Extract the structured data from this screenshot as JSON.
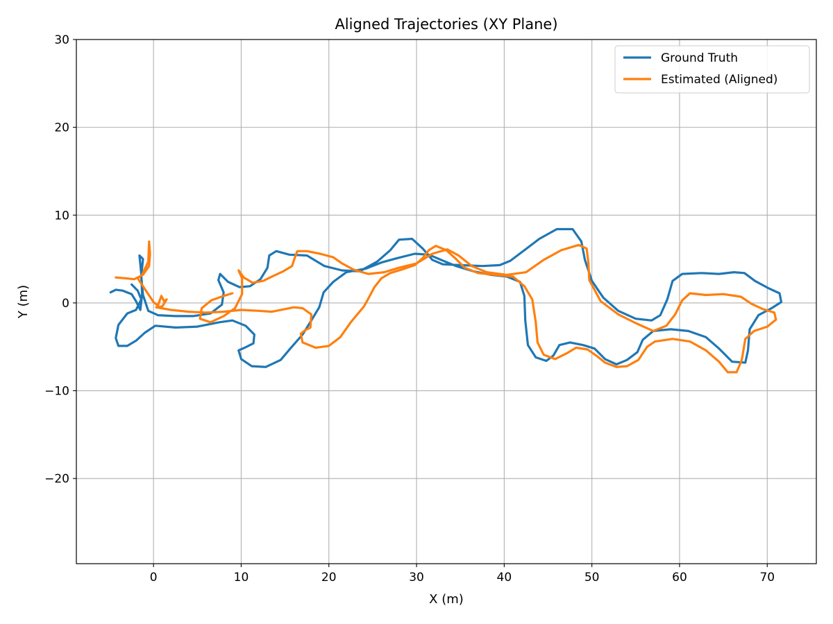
{
  "chart_data": {
    "type": "line",
    "title": "Aligned Trajectories (XY Plane)",
    "xlabel": "X (m)",
    "ylabel": "Y (m)",
    "xlim": [
      -8.8,
      75.6
    ],
    "ylim": [
      -29.7,
      30
    ],
    "xticks": [
      0,
      10,
      20,
      30,
      40,
      50,
      60,
      70
    ],
    "yticks": [
      -20,
      -10,
      0,
      10,
      20,
      30
    ],
    "xtick_labels": [
      "0",
      "10",
      "20",
      "30",
      "40",
      "50",
      "60",
      "70"
    ],
    "ytick_labels": [
      "−20",
      "−10",
      "0",
      "10",
      "20",
      "30"
    ],
    "grid": true,
    "legend_position": "top-right",
    "series": [
      {
        "name": "Ground Truth",
        "color": "#1f77b4",
        "points": [
          [
            -4.9,
            1.2
          ],
          [
            -4.3,
            1.5
          ],
          [
            -3.5,
            1.4
          ],
          [
            -2.5,
            1.0
          ],
          [
            -2.0,
            0.2
          ],
          [
            -1.5,
            -0.8
          ],
          [
            -1.3,
            1.0
          ],
          [
            -1.4,
            3.3
          ],
          [
            -1.6,
            5.4
          ],
          [
            -1.2,
            5.0
          ],
          [
            -1.4,
            3.0
          ],
          [
            -1.2,
            0.9
          ],
          [
            -0.6,
            -0.9
          ],
          [
            0.5,
            -1.4
          ],
          [
            2.5,
            -1.5
          ],
          [
            4.5,
            -1.5
          ],
          [
            6.5,
            -1.2
          ],
          [
            7.8,
            -0.2
          ],
          [
            8.0,
            1.2
          ],
          [
            7.4,
            2.6
          ],
          [
            7.6,
            3.3
          ],
          [
            8.5,
            2.4
          ],
          [
            9.8,
            1.8
          ],
          [
            11.0,
            1.9
          ],
          [
            12.2,
            2.7
          ],
          [
            13.0,
            4.0
          ],
          [
            13.2,
            5.4
          ],
          [
            14.0,
            5.9
          ],
          [
            15.5,
            5.5
          ],
          [
            17.5,
            5.4
          ],
          [
            18.5,
            4.8
          ],
          [
            19.5,
            4.2
          ],
          [
            21.5,
            3.7
          ],
          [
            23.5,
            3.6
          ],
          [
            25.5,
            4.7
          ],
          [
            27.0,
            6.0
          ],
          [
            28.0,
            7.2
          ],
          [
            29.5,
            7.3
          ],
          [
            30.7,
            6.2
          ],
          [
            31.8,
            4.9
          ],
          [
            33.0,
            4.4
          ],
          [
            35.0,
            4.3
          ],
          [
            37.5,
            4.2
          ],
          [
            39.5,
            4.3
          ],
          [
            40.7,
            4.8
          ],
          [
            42.3,
            6.0
          ],
          [
            44.0,
            7.3
          ],
          [
            46.0,
            8.4
          ],
          [
            47.8,
            8.4
          ],
          [
            48.8,
            7.0
          ],
          [
            49.2,
            4.9
          ],
          [
            50.0,
            2.5
          ],
          [
            51.3,
            0.6
          ],
          [
            53.0,
            -0.9
          ],
          [
            55.0,
            -1.8
          ],
          [
            56.8,
            -2.0
          ],
          [
            57.8,
            -1.4
          ],
          [
            58.6,
            0.4
          ],
          [
            59.2,
            2.5
          ],
          [
            60.3,
            3.3
          ],
          [
            62.5,
            3.4
          ],
          [
            64.5,
            3.3
          ],
          [
            66.2,
            3.5
          ],
          [
            67.4,
            3.4
          ],
          [
            68.6,
            2.5
          ],
          [
            70.1,
            1.7
          ],
          [
            71.4,
            1.1
          ],
          [
            71.6,
            0.1
          ],
          [
            70.5,
            -0.6
          ],
          [
            69.0,
            -1.4
          ],
          [
            68.0,
            -3.0
          ],
          [
            67.8,
            -5.4
          ],
          [
            67.5,
            -6.8
          ],
          [
            66.0,
            -6.7
          ],
          [
            64.5,
            -5.2
          ],
          [
            63.0,
            -3.9
          ],
          [
            61.0,
            -3.2
          ],
          [
            59.0,
            -3.0
          ],
          [
            57.0,
            -3.2
          ],
          [
            55.8,
            -4.2
          ],
          [
            55.2,
            -5.6
          ],
          [
            54.0,
            -6.5
          ],
          [
            52.8,
            -7.0
          ],
          [
            51.5,
            -6.4
          ],
          [
            50.3,
            -5.2
          ],
          [
            49.0,
            -4.8
          ],
          [
            47.5,
            -4.5
          ],
          [
            46.3,
            -4.8
          ],
          [
            45.6,
            -6.0
          ],
          [
            44.8,
            -6.6
          ],
          [
            43.6,
            -6.2
          ],
          [
            42.7,
            -4.8
          ],
          [
            42.4,
            -2.0
          ],
          [
            42.3,
            0.8
          ],
          [
            41.8,
            2.4
          ],
          [
            40.3,
            3.0
          ],
          [
            38.5,
            3.2
          ],
          [
            36.5,
            3.6
          ],
          [
            34.5,
            4.2
          ],
          [
            32.8,
            4.9
          ],
          [
            31.4,
            5.5
          ],
          [
            29.8,
            5.6
          ],
          [
            27.8,
            5.1
          ],
          [
            26.0,
            4.6
          ],
          [
            24.2,
            3.9
          ],
          [
            22.0,
            3.5
          ],
          [
            20.5,
            2.4
          ],
          [
            19.4,
            1.2
          ],
          [
            18.9,
            -0.5
          ],
          [
            18.0,
            -2.0
          ],
          [
            17.0,
            -3.6
          ],
          [
            15.6,
            -5.2
          ],
          [
            14.5,
            -6.5
          ],
          [
            12.8,
            -7.3
          ],
          [
            11.2,
            -7.2
          ],
          [
            10.0,
            -6.4
          ],
          [
            9.7,
            -5.4
          ],
          [
            10.4,
            -5.1
          ],
          [
            11.4,
            -4.6
          ],
          [
            11.5,
            -3.6
          ],
          [
            10.5,
            -2.6
          ],
          [
            9.0,
            -2.0
          ],
          [
            7.5,
            -2.2
          ],
          [
            5.0,
            -2.7
          ],
          [
            2.5,
            -2.8
          ],
          [
            0.2,
            -2.6
          ],
          [
            -1.0,
            -3.4
          ],
          [
            -2.0,
            -4.3
          ],
          [
            -3.0,
            -4.9
          ],
          [
            -4.0,
            -4.9
          ],
          [
            -4.3,
            -4.0
          ],
          [
            -4.0,
            -2.5
          ],
          [
            -3.0,
            -1.2
          ],
          [
            -2.0,
            -0.8
          ],
          [
            -1.4,
            0.4
          ],
          [
            -1.8,
            1.4
          ],
          [
            -2.5,
            2.1
          ]
        ]
      },
      {
        "name": "Estimated (Aligned)",
        "color": "#ff7f0e",
        "points": [
          [
            -4.3,
            2.9
          ],
          [
            -3.2,
            2.8
          ],
          [
            -2.2,
            2.7
          ],
          [
            -1.2,
            3.2
          ],
          [
            -0.5,
            4.2
          ],
          [
            -0.4,
            5.6
          ],
          [
            -0.5,
            7.0
          ],
          [
            -0.6,
            4.7
          ],
          [
            -1.3,
            3.2
          ],
          [
            -1.8,
            2.8
          ],
          [
            -1.0,
            1.6
          ],
          [
            0.0,
            0.1
          ],
          [
            0.5,
            -0.3
          ],
          [
            0.9,
            0.8
          ],
          [
            1.2,
            0.2
          ],
          [
            1.5,
            0.4
          ],
          [
            1.0,
            -0.4
          ],
          [
            0.3,
            -0.5
          ],
          [
            2.0,
            -0.8
          ],
          [
            4.0,
            -1.0
          ],
          [
            6.0,
            -1.1
          ],
          [
            8.0,
            -1.0
          ],
          [
            10.0,
            -0.8
          ],
          [
            12.0,
            -0.9
          ],
          [
            13.5,
            -1.0
          ],
          [
            15.0,
            -0.7
          ],
          [
            16.0,
            -0.5
          ],
          [
            17.0,
            -0.6
          ],
          [
            18.0,
            -1.3
          ],
          [
            17.9,
            -2.8
          ],
          [
            17.3,
            -3.1
          ],
          [
            16.8,
            -3.5
          ],
          [
            17.0,
            -4.5
          ],
          [
            18.5,
            -5.1
          ],
          [
            20.0,
            -4.9
          ],
          [
            21.3,
            -3.9
          ],
          [
            22.5,
            -2.2
          ],
          [
            24.0,
            -0.4
          ],
          [
            24.5,
            0.5
          ],
          [
            25.2,
            1.8
          ],
          [
            26.0,
            2.8
          ],
          [
            27.0,
            3.4
          ],
          [
            28.3,
            3.8
          ],
          [
            29.8,
            4.3
          ],
          [
            30.7,
            5.1
          ],
          [
            31.4,
            6.0
          ],
          [
            32.2,
            6.5
          ],
          [
            33.4,
            6.0
          ],
          [
            34.4,
            5.1
          ],
          [
            35.5,
            4.0
          ],
          [
            37.0,
            3.4
          ],
          [
            39.0,
            3.2
          ],
          [
            41.0,
            3.0
          ],
          [
            42.3,
            1.9
          ],
          [
            43.2,
            0.4
          ],
          [
            43.6,
            -2.2
          ],
          [
            43.8,
            -4.5
          ],
          [
            44.5,
            -5.9
          ],
          [
            45.8,
            -6.4
          ],
          [
            47.2,
            -5.7
          ],
          [
            48.2,
            -5.1
          ],
          [
            49.5,
            -5.3
          ],
          [
            50.5,
            -6.0
          ],
          [
            51.5,
            -6.8
          ],
          [
            52.8,
            -7.3
          ],
          [
            54.0,
            -7.2
          ],
          [
            55.3,
            -6.5
          ],
          [
            56.3,
            -5.0
          ],
          [
            57.2,
            -4.4
          ],
          [
            59.2,
            -4.1
          ],
          [
            61.2,
            -4.4
          ],
          [
            63.0,
            -5.4
          ],
          [
            64.5,
            -6.7
          ],
          [
            65.5,
            -7.9
          ],
          [
            66.5,
            -7.9
          ],
          [
            67.1,
            -6.5
          ],
          [
            67.5,
            -4.1
          ],
          [
            68.5,
            -3.2
          ],
          [
            70.0,
            -2.7
          ],
          [
            71.0,
            -1.9
          ],
          [
            70.8,
            -1.1
          ],
          [
            69.5,
            -0.7
          ],
          [
            68.2,
            -0.1
          ],
          [
            67.0,
            0.7
          ],
          [
            65.0,
            1.0
          ],
          [
            63.0,
            0.9
          ],
          [
            61.2,
            1.1
          ],
          [
            60.3,
            0.3
          ],
          [
            59.5,
            -1.3
          ],
          [
            58.5,
            -2.6
          ],
          [
            57.0,
            -3.2
          ],
          [
            55.0,
            -2.3
          ],
          [
            53.0,
            -1.3
          ],
          [
            51.0,
            0.2
          ],
          [
            49.7,
            2.6
          ],
          [
            49.6,
            4.6
          ],
          [
            49.4,
            6.2
          ],
          [
            48.5,
            6.6
          ],
          [
            46.5,
            6.0
          ],
          [
            44.5,
            4.9
          ],
          [
            42.5,
            3.5
          ],
          [
            40.3,
            3.2
          ],
          [
            38.0,
            3.5
          ],
          [
            36.3,
            4.2
          ],
          [
            34.8,
            5.4
          ],
          [
            33.5,
            6.1
          ],
          [
            31.8,
            5.6
          ],
          [
            30.0,
            4.5
          ],
          [
            28.0,
            4.0
          ],
          [
            26.3,
            3.5
          ],
          [
            24.5,
            3.3
          ],
          [
            22.8,
            3.8
          ],
          [
            21.5,
            4.5
          ],
          [
            20.5,
            5.2
          ],
          [
            19.0,
            5.6
          ],
          [
            17.5,
            5.9
          ],
          [
            16.4,
            5.9
          ],
          [
            16.1,
            5.1
          ],
          [
            15.8,
            4.2
          ],
          [
            14.8,
            3.6
          ],
          [
            13.5,
            3.0
          ],
          [
            12.5,
            2.5
          ],
          [
            11.3,
            2.3
          ],
          [
            10.3,
            2.9
          ],
          [
            9.7,
            3.7
          ],
          [
            10.1,
            2.8
          ],
          [
            10.1,
            1.0
          ],
          [
            9.3,
            -0.6
          ],
          [
            8.0,
            -1.5
          ],
          [
            6.5,
            -2.2
          ],
          [
            5.3,
            -1.8
          ],
          [
            5.5,
            -0.6
          ],
          [
            6.6,
            0.3
          ],
          [
            8.0,
            0.8
          ],
          [
            9.0,
            1.1
          ]
        ]
      }
    ]
  }
}
